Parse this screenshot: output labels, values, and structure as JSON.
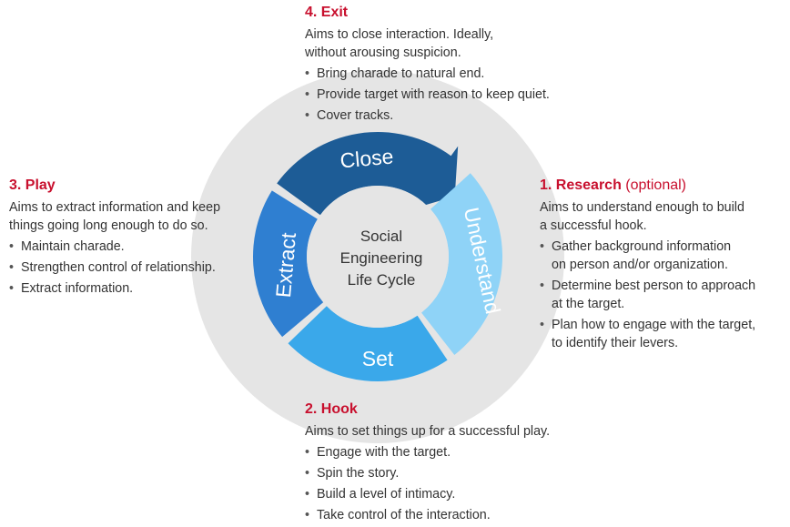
{
  "center": {
    "lines": [
      "Social",
      "Engineering",
      "Life Cycle"
    ]
  },
  "stages": {
    "close": "Close",
    "understand": "Understand",
    "set": "Set",
    "extract": "Extract"
  },
  "colors": {
    "ring_bg": "#e5e5e5",
    "close": "#1d5c96",
    "understand": "#8fd3f7",
    "set": "#3aa8ea",
    "extract": "#2f7fd1",
    "heading": "#c8102e"
  },
  "exit": {
    "heading": "4. Exit",
    "desc_lines": [
      "Aims to close interaction. Ideally,",
      "without arousing suspicion."
    ],
    "bullets": [
      "Bring charade to natural end.",
      "Provide target with reason to keep quiet.",
      "Cover tracks."
    ]
  },
  "play": {
    "heading": "3. Play",
    "desc_lines": [
      "Aims to extract information and keep",
      "things going long enough to do so."
    ],
    "bullets": [
      "Maintain charade.",
      "Strengthen control of relationship.",
      "Extract information."
    ]
  },
  "research": {
    "heading": "1. Research",
    "optional": "(optional)",
    "desc_lines": [
      "Aims to understand enough to build",
      "a successful hook."
    ],
    "bullets": [
      [
        "Gather background information",
        "on person and/or organization."
      ],
      [
        "Determine best person to approach",
        "at the target."
      ],
      [
        "Plan how to engage with the target,",
        "to identify their levers."
      ]
    ]
  },
  "hook": {
    "heading": "2. Hook",
    "desc": "Aims to set things up for a successful play.",
    "bullets": [
      "Engage with the target.",
      "Spin the story.",
      "Build a level of intimacy.",
      "Take control of the interaction."
    ]
  }
}
